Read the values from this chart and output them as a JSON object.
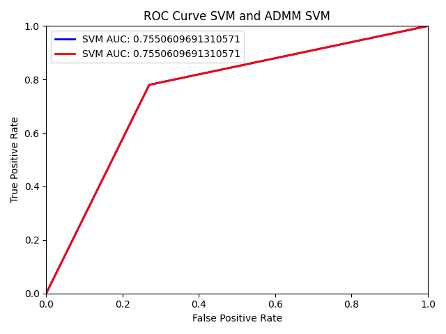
{
  "title": "ROC Curve SVM and ADMM SVM",
  "xlabel": "False Positive Rate",
  "ylabel": "True Positive Rate",
  "line1": {
    "label": "SVM AUC: 0.7550609691310571",
    "color": "blue",
    "fpr": [
      0.0,
      0.27,
      1.0
    ],
    "tpr": [
      0.0,
      0.78,
      1.0
    ]
  },
  "line2": {
    "label": "SVM AUC: 0.7550609691310571",
    "color": "red",
    "fpr": [
      0.0,
      0.27,
      1.0
    ],
    "tpr": [
      0.0,
      0.78,
      1.0
    ]
  },
  "xlim": [
    0.0,
    1.0
  ],
  "ylim": [
    0.0,
    1.0
  ],
  "linewidth": 2,
  "legend_loc": "upper left",
  "figsize": [
    6.4,
    4.8
  ],
  "dpi": 100
}
